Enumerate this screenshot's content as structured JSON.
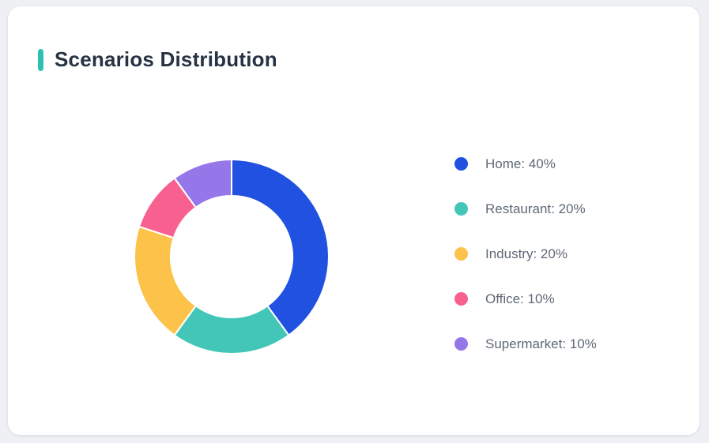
{
  "page": {
    "background_color": "#eef0f3"
  },
  "card": {
    "title": "Scenarios Distribution",
    "accent_color": "#2fc0b4",
    "background_color": "#ffffff"
  },
  "chart_data": {
    "type": "pie",
    "subtype": "donut",
    "title": "Scenarios Distribution",
    "categories": [
      "Home",
      "Restaurant",
      "Industry",
      "Office",
      "Supermarket"
    ],
    "values": [
      40,
      20,
      20,
      10,
      10
    ],
    "unit": "%",
    "start_angle": "top",
    "direction": "clockwise",
    "inner_radius_ratio": 0.63,
    "slice_gap_color": "#ffffff",
    "legend_position": "right",
    "segments": [
      {
        "label": "Home",
        "value": 40,
        "color": "#2151e0",
        "legend_text": "Home: 40%"
      },
      {
        "label": "Restaurant",
        "value": 20,
        "color": "#43c6b8",
        "legend_text": "Restaurant: 20%"
      },
      {
        "label": "Industry",
        "value": 20,
        "color": "#fcc24a",
        "legend_text": "Industry: 20%"
      },
      {
        "label": "Office",
        "value": 10,
        "color": "#f8618f",
        "legend_text": "Office: 10%"
      },
      {
        "label": "Supermarket",
        "value": 10,
        "color": "#9577e9",
        "legend_text": "Supermarket: 10%"
      }
    ]
  }
}
